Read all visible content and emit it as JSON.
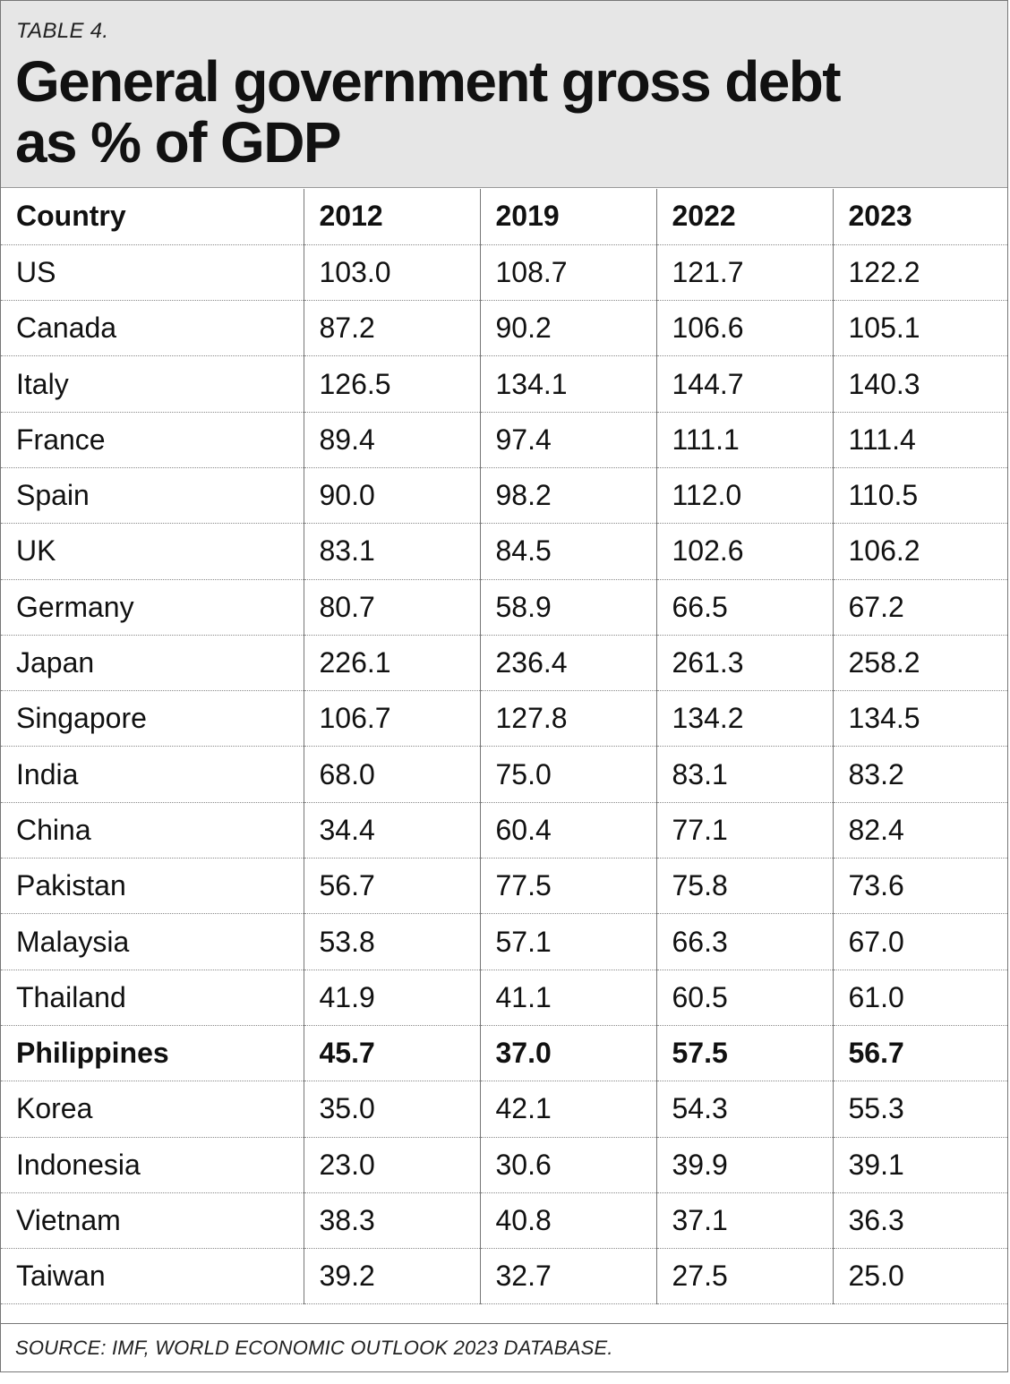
{
  "label": "TABLE 4.",
  "title_line1": "General government gross debt",
  "title_line2": "as % of GDP",
  "columns": [
    "Country",
    "2012",
    "2019",
    "2022",
    "2023"
  ],
  "rows": [
    [
      "US",
      "103.0",
      "108.7",
      "121.7",
      "122.2"
    ],
    [
      "Canada",
      "87.2",
      "90.2",
      "106.6",
      "105.1"
    ],
    [
      "Italy",
      "126.5",
      "134.1",
      "144.7",
      "140.3"
    ],
    [
      "France",
      "89.4",
      "97.4",
      "111.1",
      "111.4"
    ],
    [
      "Spain",
      "90.0",
      "98.2",
      "112.0",
      "110.5"
    ],
    [
      "UK",
      "83.1",
      "84.5",
      "102.6",
      "106.2"
    ],
    [
      "Germany",
      "80.7",
      "58.9",
      "66.5",
      "67.2"
    ],
    [
      "Japan",
      "226.1",
      "236.4",
      "261.3",
      "258.2"
    ],
    [
      "Singapore",
      "106.7",
      "127.8",
      "134.2",
      "134.5"
    ],
    [
      "India",
      "68.0",
      "75.0",
      "83.1",
      "83.2"
    ],
    [
      "China",
      "34.4",
      "60.4",
      "77.1",
      "82.4"
    ],
    [
      "Pakistan",
      "56.7",
      "77.5",
      "75.8",
      "73.6"
    ],
    [
      "Malaysia",
      "53.8",
      "57.1",
      "66.3",
      "67.0"
    ],
    [
      "Thailand",
      "41.9",
      "41.1",
      "60.5",
      "61.0"
    ],
    [
      "Philippines",
      "45.7",
      "37.0",
      "57.5",
      "56.7"
    ],
    [
      "Korea",
      "35.0",
      "42.1",
      "54.3",
      "55.3"
    ],
    [
      "Indonesia",
      "23.0",
      "30.6",
      "39.9",
      "39.1"
    ],
    [
      "Vietnam",
      "38.3",
      "40.8",
      "37.1",
      "36.3"
    ],
    [
      "Taiwan",
      "39.2",
      "32.7",
      "27.5",
      "25.0"
    ]
  ],
  "highlight_row": "Philippines",
  "source": "SOURCE: IMF, WORLD ECONOMIC OUTLOOK 2023 DATABASE.",
  "colors": {
    "header_bg": "#e6e6e6",
    "text": "#111111",
    "rule": "#777777"
  }
}
